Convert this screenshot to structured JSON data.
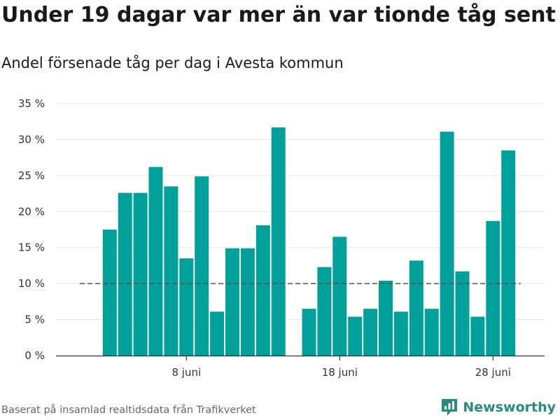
{
  "title": "Under 19 dagar var mer än var tionde tåg sent",
  "subtitle": "Andel försenade tåg per dag i Avesta kommun",
  "source": "Baserat på insamlad realtidsdata från Trafikverket",
  "brand": {
    "name": "Newsworthy",
    "icon": "newsworthy-logo-icon",
    "color": "#2a8a80"
  },
  "chart_data": {
    "type": "bar",
    "ylim": [
      0,
      35
    ],
    "yticks": [
      0,
      5,
      10,
      15,
      20,
      25,
      30,
      35
    ],
    "ytick_labels": [
      "0 %",
      "5 %",
      "10 %",
      "15 %",
      "20 %",
      "25 %",
      "30 %",
      "35 %"
    ],
    "xlim": [
      1,
      30
    ],
    "xticks": [
      8,
      18,
      28
    ],
    "xtick_labels": [
      "8 juni",
      "18 juni",
      "28 juni"
    ],
    "x": [
      3,
      4,
      5,
      6,
      7,
      8,
      9,
      10,
      11,
      12,
      13,
      14,
      16,
      17,
      18,
      19,
      20,
      21,
      22,
      23,
      24,
      25,
      26,
      27,
      28,
      29
    ],
    "values": [
      17.5,
      22.6,
      22.6,
      26.2,
      23.5,
      13.5,
      24.9,
      6.1,
      14.9,
      14.9,
      18.1,
      31.7,
      6.5,
      12.3,
      16.5,
      5.4,
      6.5,
      10.4,
      6.1,
      13.2,
      6.5,
      31.1,
      11.7,
      5.4,
      18.7,
      28.5
    ],
    "reference_line": 10,
    "grid": true,
    "colors": {
      "bar": "#00a19a",
      "grid": "#e3e3e3",
      "axis": "#333333",
      "reference": "#555555"
    }
  }
}
